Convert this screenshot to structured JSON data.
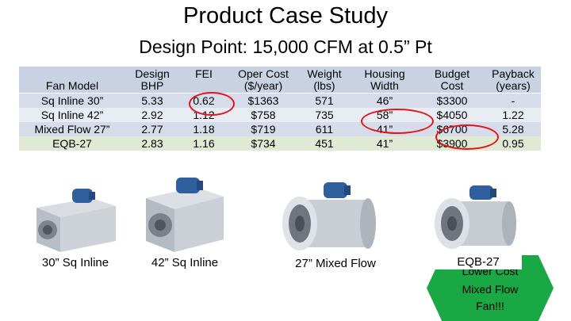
{
  "title": "Product Case Study",
  "subtitle": "Design Point:  15,000 CFM at 0.5” Pt",
  "table": {
    "headers": {
      "model": [
        "",
        "Fan Model"
      ],
      "bhp": [
        "Design",
        "BHP"
      ],
      "fei": [
        "FEI",
        ""
      ],
      "cost": [
        "Oper Cost",
        "($/year)"
      ],
      "weight": [
        "Weight",
        "(lbs)"
      ],
      "width": [
        "Housing",
        "Width"
      ],
      "budget": [
        "Budget",
        "Cost"
      ],
      "pay": [
        "Payback",
        "(years)"
      ]
    },
    "rows": [
      {
        "model": "Sq Inline 30”",
        "bhp": "5.33",
        "fei": "0.62",
        "cost": "$1363",
        "weight": "571",
        "width": "46”",
        "budget": "$3300",
        "pay": "-"
      },
      {
        "model": "Sq Inline 42”",
        "bhp": "2.92",
        "fei": "1.12",
        "cost": "$758",
        "weight": "735",
        "width": "58”",
        "budget": "$4050",
        "pay": "1.22"
      },
      {
        "model": "Mixed Flow 27”",
        "bhp": "2.77",
        "fei": "1.18",
        "cost": "$719",
        "weight": "611",
        "width": "41”",
        "budget": "$6700",
        "pay": "5.28"
      },
      {
        "model": "EQB-27",
        "bhp": "2.83",
        "fei": "1.16",
        "cost": "$734",
        "weight": "451",
        "width": "41”",
        "budget": "$3900",
        "pay": "0.95"
      }
    ]
  },
  "captions": {
    "sq30": "30” Sq Inline",
    "sq42": "42” Sq Inline",
    "mixed27": "27” Mixed Flow",
    "eqb27": "EQB-27"
  },
  "badge": {
    "line1": "Lower Cost",
    "line2": "Mixed Flow",
    "line3": "Fan!!!"
  },
  "colors": {
    "highlight_circle": "#e0161c",
    "badge_green": "#1aa844",
    "header_row": "#c9d2e3",
    "row_band": "#d6dce9",
    "row_last": "#dfe9d3"
  }
}
